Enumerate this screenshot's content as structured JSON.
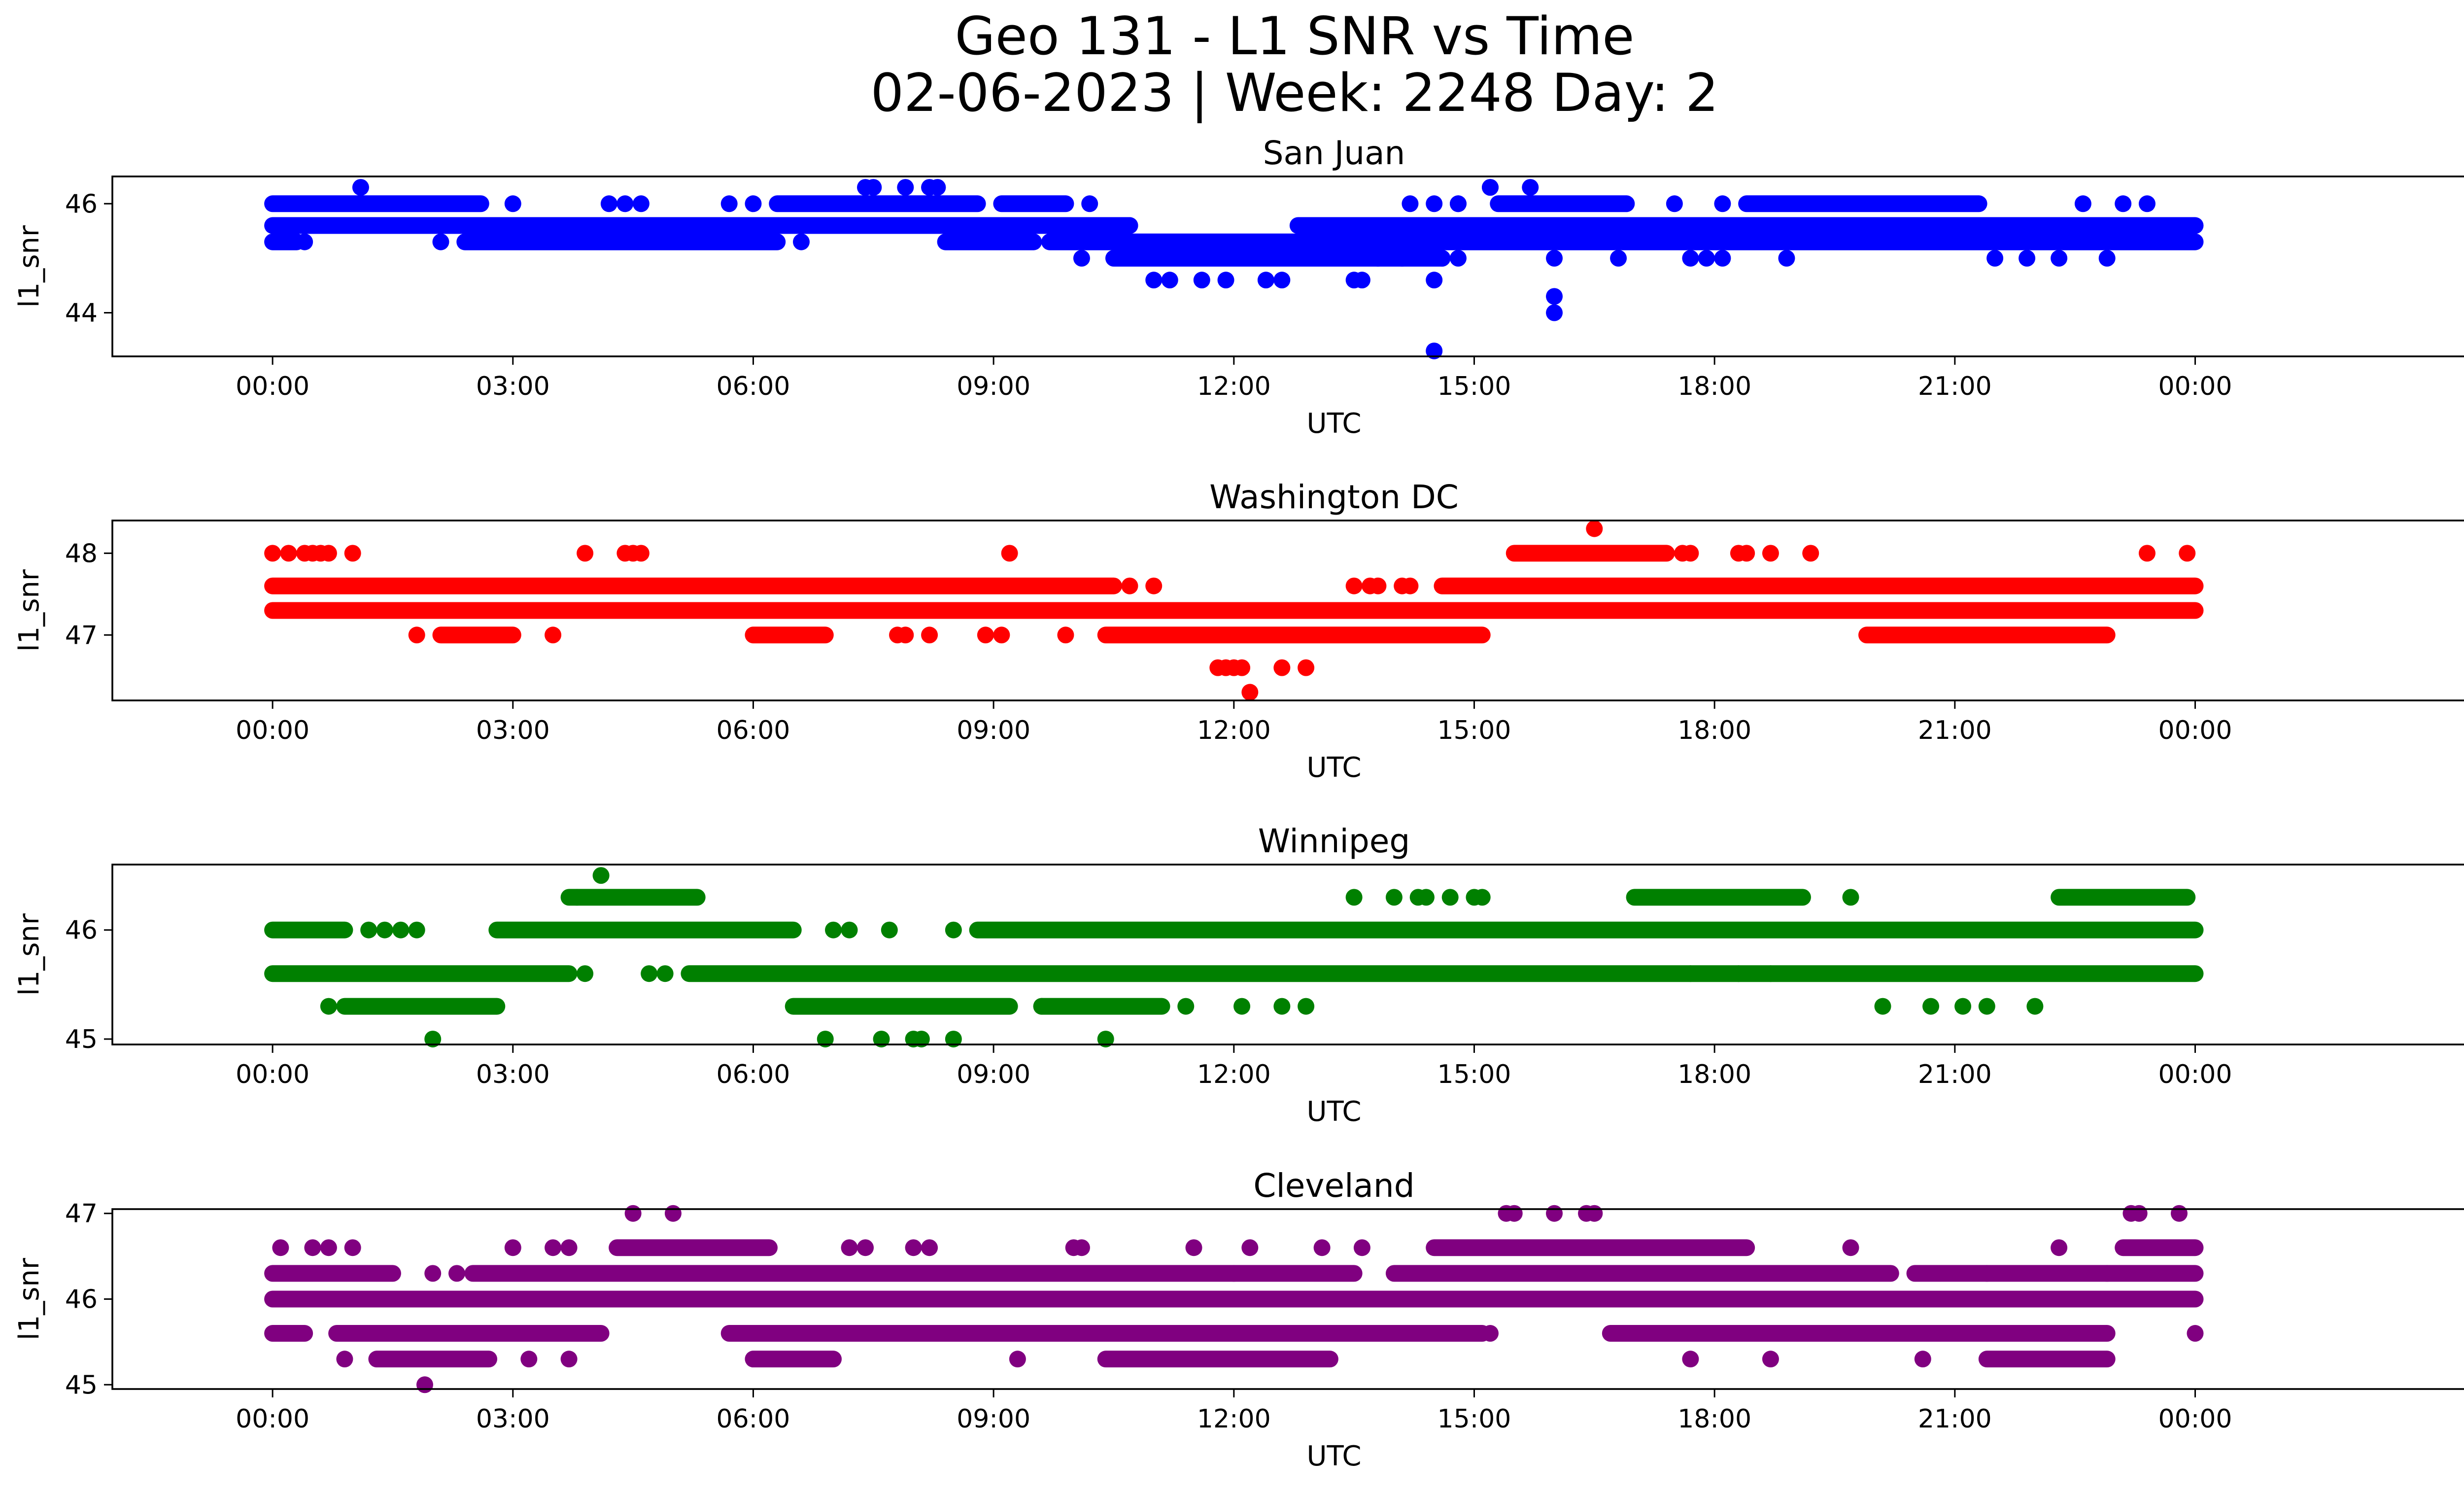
{
  "figure": {
    "title_line1": "Geo 131 - L1 SNR vs Time",
    "title_line2": "02-06-2023 | Week: 2248 Day: 2"
  },
  "chart_data": [
    {
      "type": "scatter",
      "title": "San Juan",
      "xlabel": "UTC",
      "ylabel": "l1_snr",
      "color": "#0000ff",
      "xlim_hours": [
        -2.0,
        28.5
      ],
      "x_ticks": [
        "00:00",
        "03:00",
        "06:00",
        "09:00",
        "12:00",
        "15:00",
        "18:00",
        "21:00",
        "00:00"
      ],
      "x_tick_hours": [
        0,
        3,
        6,
        9,
        12,
        15,
        18,
        21,
        24
      ],
      "ylim": [
        43.2,
        46.5
      ],
      "y_ticks": [
        44,
        46
      ],
      "bands": [
        {
          "y": 45.6,
          "ranges": [
            [
              0,
              10.7
            ],
            [
              12.8,
              24
            ]
          ]
        },
        {
          "y": 45.3,
          "ranges": [
            [
              0,
              0.3
            ],
            [
              2.4,
              6.3
            ],
            [
              8.4,
              9.5
            ],
            [
              9.7,
              24
            ]
          ]
        },
        {
          "y": 46.0,
          "ranges": [
            [
              0,
              2.6
            ],
            [
              6.3,
              8.8
            ],
            [
              9.1,
              9.9
            ],
            [
              15.3,
              16.9
            ],
            [
              18.4,
              21.3
            ]
          ]
        },
        {
          "y": 45.0,
          "ranges": [
            [
              10.5,
              14.6
            ]
          ]
        }
      ],
      "points": [
        [
          0.4,
          45.3
        ],
        [
          1.1,
          46.3
        ],
        [
          2.1,
          45.3
        ],
        [
          3.0,
          46.0
        ],
        [
          4.2,
          46.0
        ],
        [
          4.4,
          46.0
        ],
        [
          4.6,
          46.0
        ],
        [
          5.7,
          46.0
        ],
        [
          6.0,
          46.0
        ],
        [
          6.6,
          45.3
        ],
        [
          7.4,
          46.3
        ],
        [
          7.5,
          46.3
        ],
        [
          7.9,
          46.3
        ],
        [
          8.2,
          46.3
        ],
        [
          8.3,
          46.3
        ],
        [
          10.1,
          45.0
        ],
        [
          10.2,
          46.0
        ],
        [
          10.7,
          45.6
        ],
        [
          11.0,
          44.6
        ],
        [
          11.2,
          44.6
        ],
        [
          11.6,
          44.6
        ],
        [
          11.9,
          44.6
        ],
        [
          12.4,
          44.6
        ],
        [
          12.6,
          44.6
        ],
        [
          13.5,
          44.6
        ],
        [
          13.6,
          44.6
        ],
        [
          13.8,
          45.0
        ],
        [
          14.1,
          45.0
        ],
        [
          14.2,
          46.0
        ],
        [
          14.5,
          46.0
        ],
        [
          14.5,
          44.6
        ],
        [
          14.5,
          43.3
        ],
        [
          14.6,
          45.0
        ],
        [
          14.8,
          46.0
        ],
        [
          14.8,
          45.0
        ],
        [
          14.8,
          46.0
        ],
        [
          15.2,
          46.3
        ],
        [
          15.2,
          46.3
        ],
        [
          15.7,
          46.3
        ],
        [
          16.0,
          44.3
        ],
        [
          16.0,
          44.0
        ],
        [
          16.0,
          45.0
        ],
        [
          16.8,
          45.0
        ],
        [
          17.5,
          46.0
        ],
        [
          17.7,
          45.0
        ],
        [
          17.9,
          45.0
        ],
        [
          18.1,
          45.0
        ],
        [
          18.1,
          46.0
        ],
        [
          18.9,
          45.0
        ],
        [
          21.5,
          45.0
        ],
        [
          21.9,
          45.0
        ],
        [
          22.3,
          45.0
        ],
        [
          22.6,
          46.0
        ],
        [
          22.9,
          45.0
        ],
        [
          23.1,
          46.0
        ],
        [
          23.4,
          46.0
        ]
      ]
    },
    {
      "type": "scatter",
      "title": "Washington DC",
      "xlabel": "UTC",
      "ylabel": "l1_snr",
      "color": "#ff0000",
      "xlim_hours": [
        -2.0,
        28.5
      ],
      "x_ticks": [
        "00:00",
        "03:00",
        "06:00",
        "09:00",
        "12:00",
        "15:00",
        "18:00",
        "21:00",
        "00:00"
      ],
      "x_tick_hours": [
        0,
        3,
        6,
        9,
        12,
        15,
        18,
        21,
        24
      ],
      "ylim": [
        46.2,
        48.4
      ],
      "y_ticks": [
        47,
        48
      ],
      "bands": [
        {
          "y": 47.3,
          "ranges": [
            [
              0,
              24
            ]
          ]
        },
        {
          "y": 47.6,
          "ranges": [
            [
              0,
              10.5
            ],
            [
              14.6,
              24
            ]
          ]
        },
        {
          "y": 47.0,
          "ranges": [
            [
              2.1,
              3.0
            ],
            [
              6.0,
              6.9
            ],
            [
              10.4,
              15.1
            ],
            [
              19.9,
              22.9
            ]
          ]
        },
        {
          "y": 48.0,
          "ranges": [
            [
              15.5,
              17.4
            ]
          ]
        }
      ],
      "points": [
        [
          0.0,
          48.0
        ],
        [
          0.2,
          48.0
        ],
        [
          0.4,
          48.0
        ],
        [
          0.5,
          48.0
        ],
        [
          0.6,
          48.0
        ],
        [
          0.7,
          48.0
        ],
        [
          1.0,
          48.0
        ],
        [
          1.8,
          47.0
        ],
        [
          3.5,
          47.0
        ],
        [
          3.9,
          48.0
        ],
        [
          4.4,
          48.0
        ],
        [
          4.5,
          48.0
        ],
        [
          4.6,
          48.0
        ],
        [
          7.8,
          47.0
        ],
        [
          7.9,
          47.0
        ],
        [
          8.2,
          47.0
        ],
        [
          8.9,
          47.0
        ],
        [
          9.1,
          47.0
        ],
        [
          9.2,
          48.0
        ],
        [
          9.9,
          47.0
        ],
        [
          10.7,
          47.6
        ],
        [
          11.0,
          47.6
        ],
        [
          11.8,
          46.6
        ],
        [
          11.9,
          46.6
        ],
        [
          12.0,
          46.6
        ],
        [
          12.1,
          46.6
        ],
        [
          12.2,
          46.3
        ],
        [
          12.6,
          46.6
        ],
        [
          12.9,
          46.6
        ],
        [
          13.5,
          47.6
        ],
        [
          13.7,
          47.6
        ],
        [
          13.8,
          47.6
        ],
        [
          14.1,
          47.6
        ],
        [
          14.2,
          47.6
        ],
        [
          15.8,
          47.3
        ],
        [
          16.5,
          48.3
        ],
        [
          17.6,
          48.0
        ],
        [
          17.7,
          48.0
        ],
        [
          18.3,
          48.0
        ],
        [
          18.4,
          48.0
        ],
        [
          18.7,
          48.0
        ],
        [
          19.2,
          48.0
        ],
        [
          23.4,
          48.0
        ],
        [
          23.9,
          48.0
        ]
      ]
    },
    {
      "type": "scatter",
      "title": "Winnipeg",
      "xlabel": "UTC",
      "ylabel": "l1_snr",
      "color": "#008000",
      "xlim_hours": [
        -2.0,
        28.5
      ],
      "x_ticks": [
        "00:00",
        "03:00",
        "06:00",
        "09:00",
        "12:00",
        "15:00",
        "18:00",
        "21:00",
        "00:00"
      ],
      "x_tick_hours": [
        0,
        3,
        6,
        9,
        12,
        15,
        18,
        21,
        24
      ],
      "ylim": [
        44.95,
        46.6
      ],
      "y_ticks": [
        45,
        46
      ],
      "bands": [
        {
          "y": 45.6,
          "ranges": [
            [
              0,
              3.7
            ],
            [
              5.2,
              24
            ]
          ]
        },
        {
          "y": 46.0,
          "ranges": [
            [
              0,
              0.9
            ],
            [
              2.8,
              6.5
            ],
            [
              8.8,
              24
            ]
          ]
        },
        {
          "y": 45.3,
          "ranges": [
            [
              0.9,
              2.8
            ],
            [
              6.5,
              9.2
            ],
            [
              9.6,
              11.1
            ]
          ]
        },
        {
          "y": 46.3,
          "ranges": [
            [
              3.7,
              5.3
            ],
            [
              17.0,
              19.1
            ],
            [
              22.3,
              23.9
            ]
          ]
        }
      ],
      "points": [
        [
          0.7,
          45.3
        ],
        [
          1.2,
          46.0
        ],
        [
          1.4,
          46.0
        ],
        [
          1.6,
          46.0
        ],
        [
          1.8,
          46.0
        ],
        [
          2.0,
          45.0
        ],
        [
          3.8,
          46.3
        ],
        [
          4.1,
          46.5
        ],
        [
          3.9,
          45.6
        ],
        [
          4.7,
          45.6
        ],
        [
          4.9,
          45.6
        ],
        [
          6.9,
          45.0
        ],
        [
          7.0,
          46.0
        ],
        [
          7.2,
          46.0
        ],
        [
          7.6,
          45.0
        ],
        [
          7.7,
          46.0
        ],
        [
          8.0,
          45.0
        ],
        [
          8.1,
          45.0
        ],
        [
          8.5,
          45.0
        ],
        [
          8.5,
          46.0
        ],
        [
          9.6,
          45.3
        ],
        [
          10.4,
          45.0
        ],
        [
          11.4,
          45.3
        ],
        [
          12.1,
          45.3
        ],
        [
          12.6,
          45.3
        ],
        [
          12.9,
          45.3
        ],
        [
          13.5,
          46.3
        ],
        [
          14.0,
          46.3
        ],
        [
          14.3,
          46.3
        ],
        [
          14.4,
          46.3
        ],
        [
          14.7,
          46.3
        ],
        [
          15.0,
          46.3
        ],
        [
          15.1,
          46.3
        ],
        [
          17.7,
          45.6
        ],
        [
          18.3,
          45.6
        ],
        [
          18.7,
          45.6
        ],
        [
          19.7,
          46.3
        ],
        [
          20.1,
          45.3
        ],
        [
          20.7,
          45.3
        ],
        [
          21.1,
          45.3
        ],
        [
          21.4,
          45.3
        ],
        [
          22.0,
          45.3
        ]
      ]
    },
    {
      "type": "scatter",
      "title": "Cleveland",
      "xlabel": "UTC",
      "ylabel": "l1_snr",
      "color": "#800080",
      "xlim_hours": [
        -2.0,
        28.5
      ],
      "x_ticks": [
        "00:00",
        "03:00",
        "06:00",
        "09:00",
        "12:00",
        "15:00",
        "18:00",
        "21:00",
        "00:00"
      ],
      "x_tick_hours": [
        0,
        3,
        6,
        9,
        12,
        15,
        18,
        21,
        24
      ],
      "ylim": [
        44.95,
        47.05
      ],
      "y_ticks": [
        45,
        46,
        47
      ],
      "bands": [
        {
          "y": 46.0,
          "ranges": [
            [
              0,
              24
            ]
          ]
        },
        {
          "y": 46.3,
          "ranges": [
            [
              0,
              1.5
            ],
            [
              2.5,
              13.5
            ],
            [
              14.0,
              20.2
            ],
            [
              20.5,
              24
            ]
          ]
        },
        {
          "y": 45.6,
          "ranges": [
            [
              0,
              0.4
            ],
            [
              0.8,
              4.1
            ],
            [
              5.7,
              15.1
            ],
            [
              16.7,
              22.9
            ]
          ]
        },
        {
          "y": 45.3,
          "ranges": [
            [
              1.3,
              2.7
            ],
            [
              6.0,
              7.0
            ],
            [
              10.4,
              13.2
            ],
            [
              21.4,
              22.9
            ]
          ]
        },
        {
          "y": 46.6,
          "ranges": [
            [
              4.3,
              6.2
            ],
            [
              14.5,
              18.4
            ],
            [
              23.1,
              24
            ]
          ]
        }
      ],
      "points": [
        [
          0.1,
          46.6
        ],
        [
          0.5,
          46.6
        ],
        [
          0.7,
          46.6
        ],
        [
          0.9,
          45.3
        ],
        [
          1.0,
          46.6
        ],
        [
          1.9,
          45.0
        ],
        [
          2.0,
          46.3
        ],
        [
          2.3,
          46.3
        ],
        [
          3.0,
          46.6
        ],
        [
          3.2,
          45.3
        ],
        [
          3.5,
          46.6
        ],
        [
          3.7,
          46.6
        ],
        [
          3.7,
          45.3
        ],
        [
          4.5,
          47.0
        ],
        [
          5.0,
          47.0
        ],
        [
          7.2,
          46.6
        ],
        [
          7.4,
          46.6
        ],
        [
          8.0,
          46.6
        ],
        [
          8.2,
          46.6
        ],
        [
          9.3,
          45.3
        ],
        [
          10.0,
          46.6
        ],
        [
          10.1,
          46.6
        ],
        [
          11.5,
          46.6
        ],
        [
          12.0,
          46.3
        ],
        [
          12.2,
          46.6
        ],
        [
          13.1,
          46.6
        ],
        [
          13.6,
          46.6
        ],
        [
          15.2,
          45.6
        ],
        [
          15.4,
          47.0
        ],
        [
          15.5,
          47.0
        ],
        [
          16.0,
          47.0
        ],
        [
          16.4,
          47.0
        ],
        [
          16.5,
          47.0
        ],
        [
          17.7,
          45.3
        ],
        [
          18.7,
          45.3
        ],
        [
          19.7,
          46.6
        ],
        [
          20.6,
          46.0
        ],
        [
          20.6,
          45.3
        ],
        [
          21.4,
          46.3
        ],
        [
          22.3,
          46.6
        ],
        [
          22.9,
          46.3
        ],
        [
          23.2,
          47.0
        ],
        [
          23.3,
          47.0
        ],
        [
          23.8,
          47.0
        ],
        [
          23.9,
          46.0
        ],
        [
          24.0,
          45.6
        ]
      ]
    }
  ]
}
